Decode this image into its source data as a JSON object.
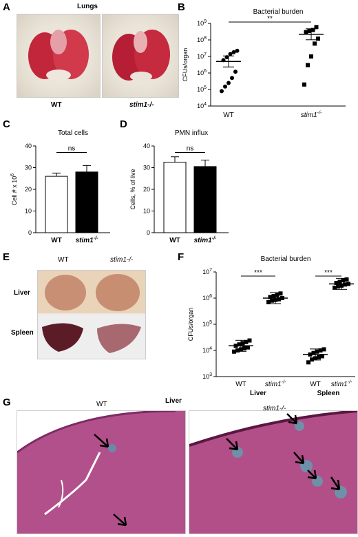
{
  "panels": {
    "A": {
      "letter": "A",
      "title": "Lungs",
      "labels": [
        "WT",
        "stim1-/-"
      ]
    },
    "B": {
      "letter": "B"
    },
    "C": {
      "letter": "C"
    },
    "D": {
      "letter": "D"
    },
    "E": {
      "letter": "E",
      "col_labels": [
        "WT",
        "stim1-/-"
      ],
      "row_labels": [
        "Liver",
        "Spleen"
      ]
    },
    "F": {
      "letter": "F"
    },
    "G": {
      "letter": "G",
      "title": "Liver",
      "labels": [
        "WT",
        "stim1-/-"
      ]
    }
  },
  "chart_data": [
    {
      "panel": "B",
      "type": "scatter",
      "title": "Bacterial burden",
      "ylabel": "CFUs/organ",
      "yscale": "log",
      "ylim": [
        10000,
        1000000000
      ],
      "yticks": [
        "10^4",
        "10^5",
        "10^6",
        "10^7",
        "10^8",
        "10^9"
      ],
      "categories": [
        "WT",
        "stim1-/-"
      ],
      "series": [
        {
          "category": "WT",
          "marker": "circle",
          "mean": 5000000,
          "values": [
            80000,
            150000,
            250000,
            500000,
            1200000,
            6000000,
            9000000,
            14000000,
            18000000,
            22000000
          ]
        },
        {
          "category": "stim1-/-",
          "marker": "square",
          "mean": 220000000,
          "values": [
            200000,
            3000000,
            10000000,
            60000000,
            120000000,
            300000000,
            350000000,
            400000000,
            600000000
          ]
        }
      ],
      "annotation": "**"
    },
    {
      "panel": "C",
      "type": "bar",
      "title": "Total cells",
      "ylabel": "Cell # x 10^6",
      "ylim": [
        0,
        40
      ],
      "yticks": [
        "0",
        "10",
        "20",
        "30",
        "40"
      ],
      "categories": [
        "WT",
        "stim1-/-"
      ],
      "values": [
        26,
        28
      ],
      "errors": [
        1.5,
        3
      ],
      "colors": [
        "#ffffff",
        "#000000"
      ],
      "annotation": "ns"
    },
    {
      "panel": "D",
      "type": "bar",
      "title": "PMN influx",
      "ylabel": "Cells, % of live",
      "ylim": [
        0,
        40
      ],
      "yticks": [
        "0",
        "10",
        "20",
        "30",
        "40"
      ],
      "categories": [
        "WT",
        "stim1-/-"
      ],
      "values": [
        32.5,
        30.5
      ],
      "errors": [
        2.5,
        3
      ],
      "colors": [
        "#ffffff",
        "#000000"
      ],
      "annotation": "ns"
    },
    {
      "panel": "F",
      "type": "scatter",
      "title": "Bacterial burden",
      "ylabel": "CFUs/organ",
      "yscale": "log",
      "ylim": [
        1000,
        10000000
      ],
      "yticks": [
        "10^3",
        "10^4",
        "10^5",
        "10^6",
        "10^7"
      ],
      "categories": [
        "WT",
        "stim1-/-",
        "WT",
        "stim1-/-"
      ],
      "groups": [
        "Liver",
        "Spleen"
      ],
      "series": [
        {
          "category": "WT",
          "group": "Liver",
          "marker": "square",
          "mean": 15000,
          "values": [
            9000,
            10000,
            11000,
            12000,
            13000,
            15000,
            17000,
            19000,
            21000,
            24000
          ]
        },
        {
          "category": "stim1-/-",
          "group": "Liver",
          "marker": "square",
          "mean": 1000000,
          "values": [
            700000,
            800000,
            850000,
            900000,
            1000000,
            1100000,
            1200000,
            1300000,
            1500000
          ]
        },
        {
          "category": "WT",
          "group": "Spleen",
          "marker": "square",
          "mean": 7000,
          "values": [
            3500,
            4500,
            5000,
            5500,
            6000,
            7000,
            8000,
            9000,
            10000,
            11000
          ]
        },
        {
          "category": "stim1-/-",
          "group": "Spleen",
          "marker": "square",
          "mean": 3500000,
          "values": [
            2500000,
            2800000,
            3000000,
            3300000,
            3500000,
            3800000,
            4200000,
            4800000,
            5200000
          ]
        }
      ],
      "annotations": [
        "***",
        "***"
      ]
    }
  ]
}
